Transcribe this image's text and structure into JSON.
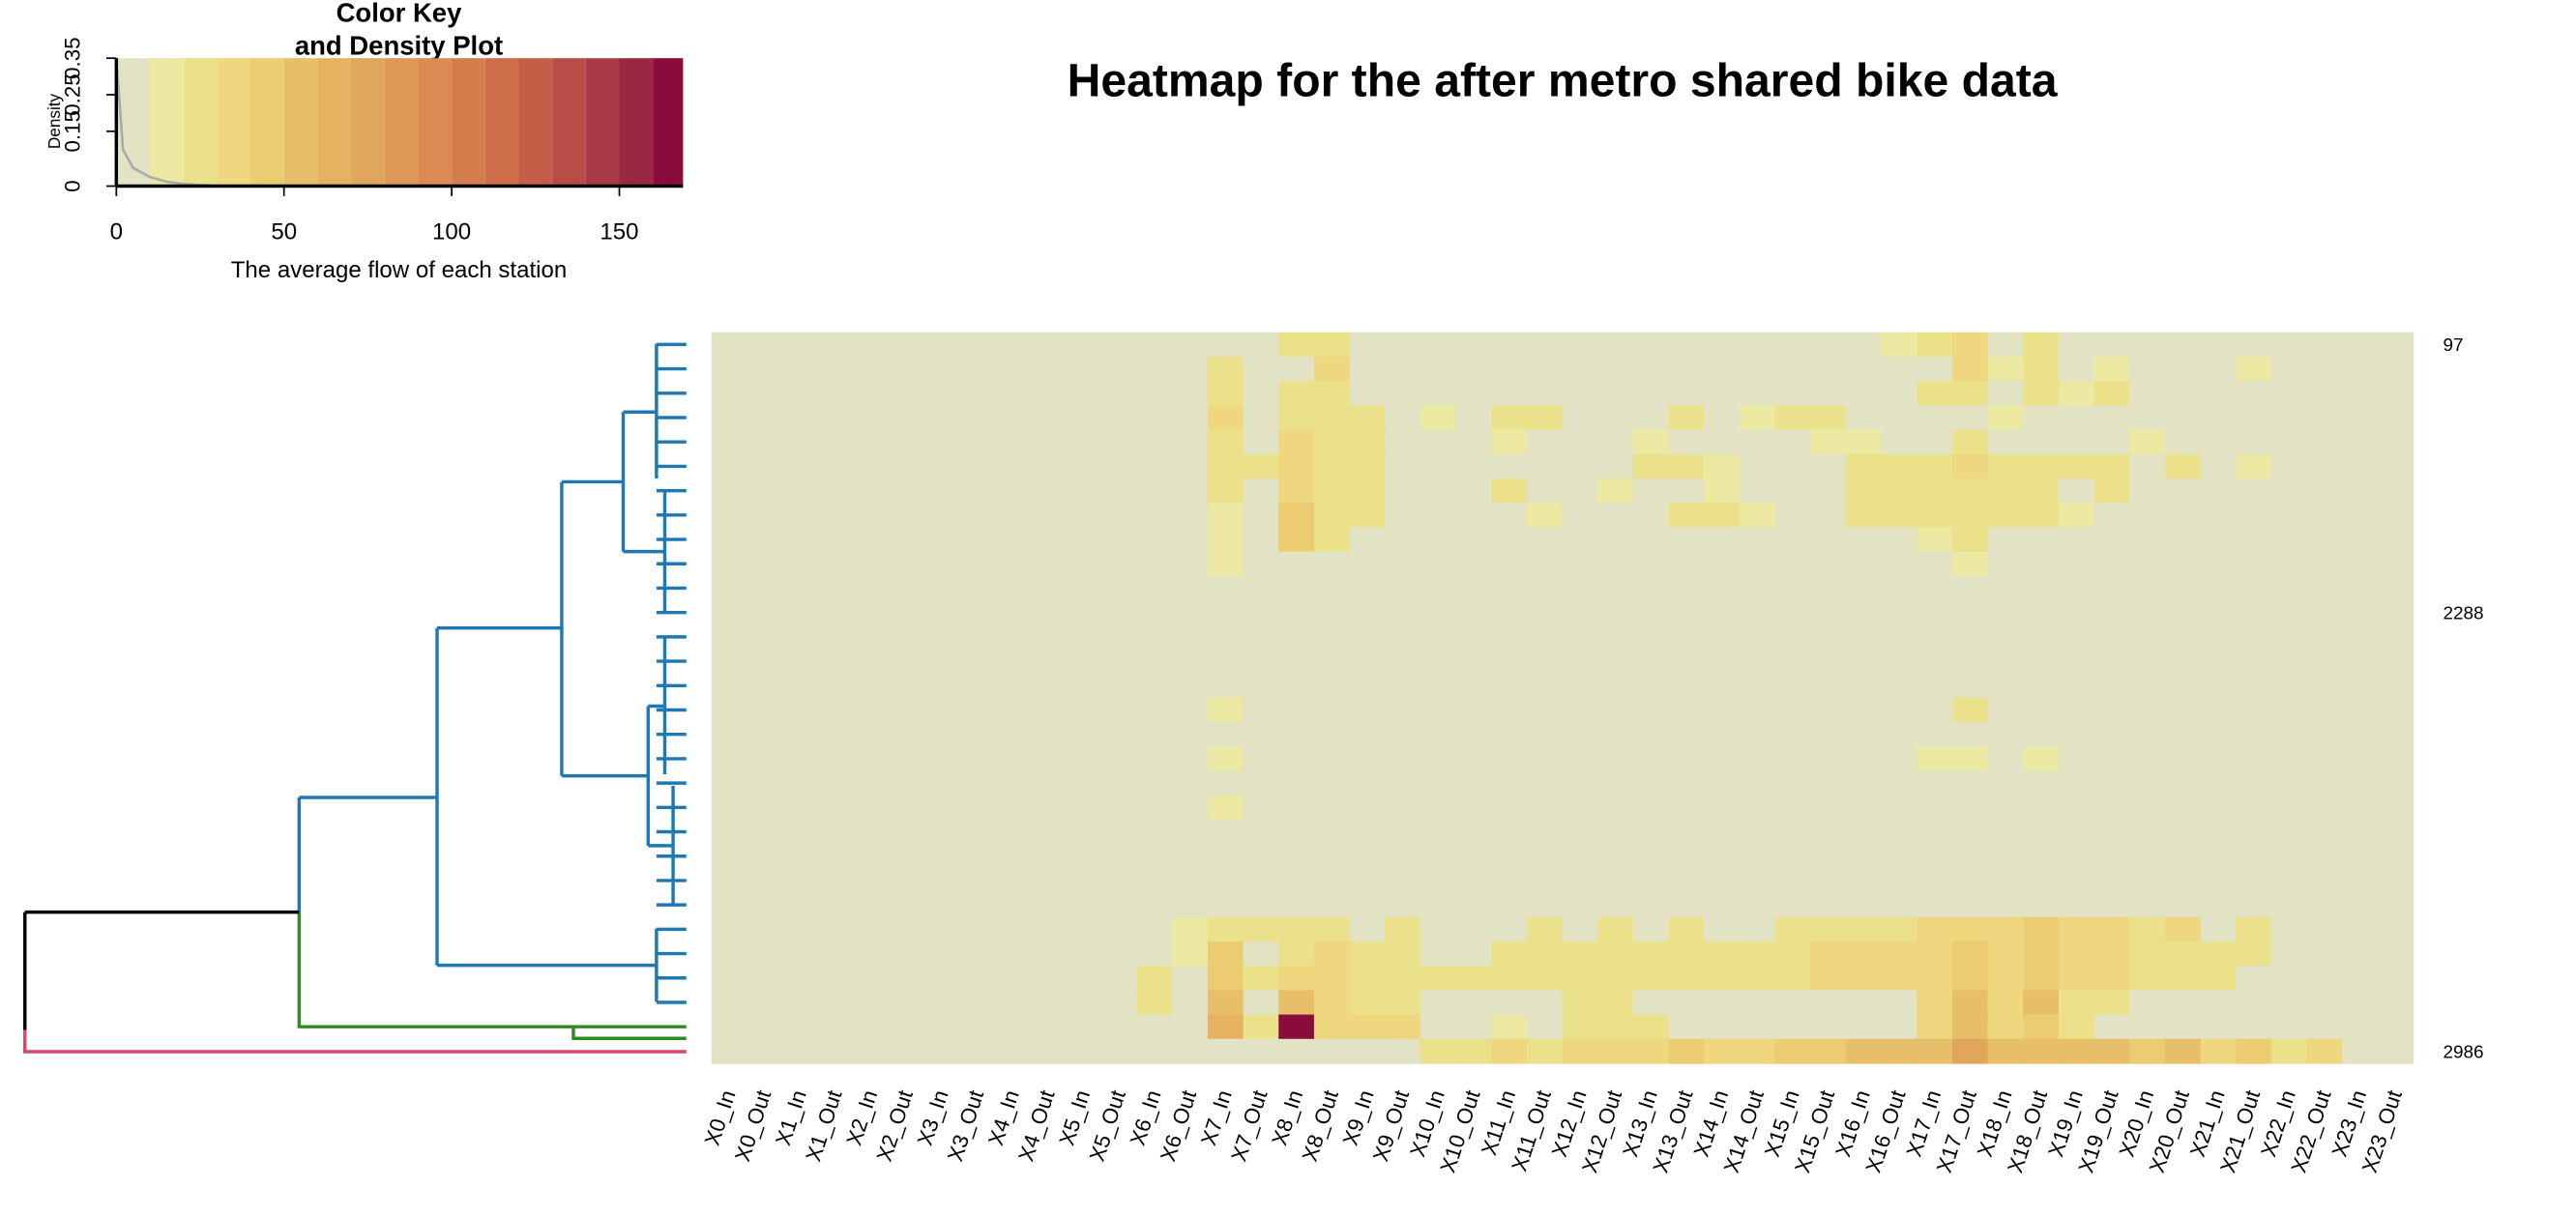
{
  "chart_data": {
    "type": "heatmap",
    "title": "Heatmap for the after metro shared bike data",
    "categories": [
      "X0_In",
      "X0_Out",
      "X1_In",
      "X1_Out",
      "X2_In",
      "X2_Out",
      "X3_In",
      "X3_Out",
      "X4_In",
      "X4_Out",
      "X5_In",
      "X5_Out",
      "X6_In",
      "X6_Out",
      "X7_In",
      "X7_Out",
      "X8_In",
      "X8_Out",
      "X9_In",
      "X9_Out",
      "X10_In",
      "X10_Out",
      "X11_In",
      "X11_Out",
      "X12_In",
      "X12_Out",
      "X13_In",
      "X13_Out",
      "X14_In",
      "X14_Out",
      "X15_In",
      "X15_Out",
      "X16_In",
      "X16_Out",
      "X17_In",
      "X17_Out",
      "X18_In",
      "X18_Out",
      "X19_In",
      "X19_Out",
      "X20_In",
      "X20_Out",
      "X21_In",
      "X21_Out",
      "X22_In",
      "X22_Out",
      "X23_In",
      "X23_Out"
    ],
    "rows": [
      "97",
      null,
      null,
      null,
      null,
      null,
      null,
      null,
      null,
      null,
      null,
      "2288",
      null,
      null,
      null,
      null,
      null,
      null,
      null,
      null,
      null,
      null,
      null,
      null,
      null,
      null,
      null,
      null,
      null,
      "2986"
    ],
    "values": [
      [
        0,
        0,
        0,
        0,
        0,
        0,
        0,
        0,
        0,
        0,
        0,
        0,
        0,
        0,
        0,
        0,
        20,
        25,
        0,
        0,
        0,
        0,
        0,
        0,
        0,
        0,
        0,
        0,
        0,
        0,
        0,
        0,
        0,
        15,
        20,
        30,
        0,
        20,
        0,
        0,
        0,
        0,
        0,
        0,
        0,
        0,
        0,
        0
      ],
      [
        0,
        0,
        0,
        0,
        0,
        0,
        0,
        0,
        0,
        0,
        0,
        0,
        0,
        0,
        20,
        0,
        0,
        30,
        0,
        0,
        0,
        0,
        0,
        0,
        0,
        0,
        0,
        0,
        0,
        0,
        0,
        0,
        0,
        0,
        0,
        30,
        15,
        20,
        0,
        15,
        0,
        0,
        0,
        15,
        0,
        0,
        0,
        0
      ],
      [
        0,
        0,
        0,
        0,
        0,
        0,
        0,
        0,
        0,
        0,
        0,
        0,
        0,
        0,
        25,
        0,
        20,
        25,
        0,
        0,
        0,
        0,
        0,
        0,
        0,
        0,
        0,
        0,
        0,
        0,
        0,
        0,
        0,
        0,
        20,
        25,
        0,
        25,
        15,
        20,
        0,
        0,
        0,
        0,
        0,
        0,
        0,
        0
      ],
      [
        0,
        0,
        0,
        0,
        0,
        0,
        0,
        0,
        0,
        0,
        0,
        0,
        0,
        0,
        30,
        0,
        25,
        20,
        20,
        0,
        15,
        0,
        20,
        20,
        0,
        0,
        0,
        20,
        0,
        15,
        20,
        20,
        0,
        0,
        0,
        0,
        15,
        0,
        0,
        0,
        0,
        0,
        0,
        0,
        0,
        0,
        0,
        0
      ],
      [
        0,
        0,
        0,
        0,
        0,
        0,
        0,
        0,
        0,
        0,
        0,
        0,
        0,
        0,
        25,
        0,
        30,
        20,
        20,
        0,
        0,
        0,
        15,
        0,
        0,
        0,
        15,
        0,
        0,
        0,
        0,
        15,
        15,
        0,
        0,
        20,
        0,
        0,
        0,
        0,
        15,
        0,
        0,
        0,
        0,
        0,
        0,
        0
      ],
      [
        0,
        0,
        0,
        0,
        0,
        0,
        0,
        0,
        0,
        0,
        0,
        0,
        0,
        0,
        25,
        20,
        35,
        25,
        20,
        0,
        0,
        0,
        0,
        0,
        0,
        0,
        20,
        20,
        15,
        0,
        0,
        0,
        25,
        25,
        25,
        30,
        25,
        25,
        20,
        25,
        0,
        20,
        0,
        15,
        0,
        0,
        0,
        0
      ],
      [
        0,
        0,
        0,
        0,
        0,
        0,
        0,
        0,
        0,
        0,
        0,
        0,
        0,
        0,
        20,
        0,
        30,
        25,
        20,
        0,
        0,
        0,
        20,
        0,
        0,
        15,
        0,
        0,
        15,
        0,
        0,
        0,
        25,
        25,
        20,
        25,
        20,
        20,
        0,
        20,
        0,
        0,
        0,
        0,
        0,
        0,
        0,
        0
      ],
      [
        0,
        0,
        0,
        0,
        0,
        0,
        0,
        0,
        0,
        0,
        0,
        0,
        0,
        0,
        15,
        0,
        40,
        20,
        20,
        0,
        0,
        0,
        0,
        15,
        0,
        0,
        0,
        20,
        20,
        15,
        0,
        0,
        20,
        20,
        20,
        20,
        20,
        20,
        15,
        0,
        0,
        0,
        0,
        0,
        0,
        0,
        0,
        0
      ],
      [
        0,
        0,
        0,
        0,
        0,
        0,
        0,
        0,
        0,
        0,
        0,
        0,
        0,
        0,
        15,
        0,
        45,
        20,
        0,
        0,
        0,
        0,
        0,
        0,
        0,
        0,
        0,
        0,
        0,
        0,
        0,
        0,
        0,
        0,
        15,
        20,
        0,
        0,
        0,
        0,
        0,
        0,
        0,
        0,
        0,
        0,
        0,
        0
      ],
      [
        0,
        0,
        0,
        0,
        0,
        0,
        0,
        0,
        0,
        0,
        0,
        0,
        0,
        0,
        15,
        0,
        0,
        0,
        0,
        0,
        0,
        0,
        0,
        0,
        0,
        0,
        0,
        0,
        0,
        0,
        0,
        0,
        0,
        0,
        0,
        15,
        0,
        0,
        0,
        0,
        0,
        0,
        0,
        0,
        0,
        0,
        0,
        0
      ],
      [
        0,
        0,
        0,
        0,
        0,
        0,
        0,
        0,
        0,
        0,
        0,
        0,
        0,
        0,
        0,
        0,
        0,
        0,
        0,
        0,
        0,
        0,
        0,
        0,
        0,
        0,
        0,
        0,
        0,
        0,
        0,
        0,
        0,
        0,
        0,
        0,
        0,
        0,
        0,
        0,
        0,
        0,
        0,
        0,
        0,
        0,
        0,
        0
      ],
      [
        0,
        0,
        0,
        0,
        0,
        0,
        0,
        0,
        0,
        0,
        0,
        0,
        0,
        0,
        0,
        0,
        0,
        0,
        0,
        0,
        0,
        0,
        0,
        0,
        0,
        0,
        0,
        0,
        0,
        0,
        0,
        0,
        0,
        0,
        0,
        0,
        0,
        0,
        0,
        0,
        0,
        0,
        0,
        0,
        0,
        0,
        0,
        0
      ],
      [
        0,
        0,
        0,
        0,
        0,
        0,
        0,
        0,
        0,
        0,
        0,
        0,
        0,
        0,
        0,
        0,
        0,
        0,
        0,
        0,
        0,
        0,
        0,
        0,
        0,
        0,
        0,
        0,
        0,
        0,
        0,
        0,
        0,
        0,
        0,
        0,
        0,
        0,
        0,
        0,
        0,
        0,
        0,
        0,
        0,
        0,
        0,
        0
      ],
      [
        0,
        0,
        0,
        0,
        0,
        0,
        0,
        0,
        0,
        0,
        0,
        0,
        0,
        0,
        0,
        0,
        0,
        0,
        0,
        0,
        0,
        0,
        0,
        0,
        0,
        0,
        0,
        0,
        0,
        0,
        0,
        0,
        0,
        0,
        0,
        0,
        0,
        0,
        0,
        0,
        0,
        0,
        0,
        0,
        0,
        0,
        0,
        0
      ],
      [
        0,
        0,
        0,
        0,
        0,
        0,
        0,
        0,
        0,
        0,
        0,
        0,
        0,
        0,
        0,
        0,
        0,
        0,
        0,
        0,
        0,
        0,
        0,
        0,
        0,
        0,
        0,
        0,
        0,
        0,
        0,
        0,
        0,
        0,
        0,
        0,
        0,
        0,
        0,
        0,
        0,
        0,
        0,
        0,
        0,
        0,
        0,
        0
      ],
      [
        0,
        0,
        0,
        0,
        0,
        0,
        0,
        0,
        0,
        0,
        0,
        0,
        0,
        0,
        15,
        0,
        0,
        0,
        0,
        0,
        0,
        0,
        0,
        0,
        0,
        0,
        0,
        0,
        0,
        0,
        0,
        0,
        0,
        0,
        0,
        20,
        0,
        0,
        0,
        0,
        0,
        0,
        0,
        0,
        0,
        0,
        0,
        0
      ],
      [
        0,
        0,
        0,
        0,
        0,
        0,
        0,
        0,
        0,
        0,
        0,
        0,
        0,
        0,
        0,
        0,
        0,
        0,
        0,
        0,
        0,
        0,
        0,
        0,
        0,
        0,
        0,
        0,
        0,
        0,
        0,
        0,
        0,
        0,
        0,
        0,
        0,
        0,
        0,
        0,
        0,
        0,
        0,
        0,
        0,
        0,
        0,
        0
      ],
      [
        0,
        0,
        0,
        0,
        0,
        0,
        0,
        0,
        0,
        0,
        0,
        0,
        0,
        0,
        15,
        0,
        0,
        0,
        0,
        0,
        0,
        0,
        0,
        0,
        0,
        0,
        0,
        0,
        0,
        0,
        0,
        0,
        0,
        0,
        15,
        15,
        0,
        15,
        0,
        0,
        0,
        0,
        0,
        0,
        0,
        0,
        0,
        0
      ],
      [
        0,
        0,
        0,
        0,
        0,
        0,
        0,
        0,
        0,
        0,
        0,
        0,
        0,
        0,
        0,
        0,
        0,
        0,
        0,
        0,
        0,
        0,
        0,
        0,
        0,
        0,
        0,
        0,
        0,
        0,
        0,
        0,
        0,
        0,
        0,
        0,
        0,
        0,
        0,
        0,
        0,
        0,
        0,
        0,
        0,
        0,
        0,
        0
      ],
      [
        0,
        0,
        0,
        0,
        0,
        0,
        0,
        0,
        0,
        0,
        0,
        0,
        0,
        0,
        15,
        0,
        0,
        0,
        0,
        0,
        0,
        0,
        0,
        0,
        0,
        0,
        0,
        0,
        0,
        0,
        0,
        0,
        0,
        0,
        0,
        0,
        0,
        0,
        0,
        0,
        0,
        0,
        0,
        0,
        0,
        0,
        0,
        0
      ],
      [
        0,
        0,
        0,
        0,
        0,
        0,
        0,
        0,
        0,
        0,
        0,
        0,
        0,
        0,
        0,
        0,
        0,
        0,
        0,
        0,
        0,
        0,
        0,
        0,
        0,
        0,
        0,
        0,
        0,
        0,
        0,
        0,
        0,
        0,
        0,
        0,
        0,
        0,
        0,
        0,
        0,
        0,
        0,
        0,
        0,
        0,
        0,
        0
      ],
      [
        0,
        0,
        0,
        0,
        0,
        0,
        0,
        0,
        0,
        0,
        0,
        0,
        0,
        0,
        0,
        0,
        0,
        0,
        0,
        0,
        0,
        0,
        0,
        0,
        0,
        0,
        0,
        0,
        0,
        0,
        0,
        0,
        0,
        0,
        0,
        0,
        0,
        0,
        0,
        0,
        0,
        0,
        0,
        0,
        0,
        0,
        0,
        0
      ],
      [
        0,
        0,
        0,
        0,
        0,
        0,
        0,
        0,
        0,
        0,
        0,
        0,
        0,
        0,
        0,
        0,
        0,
        0,
        0,
        0,
        0,
        0,
        0,
        0,
        0,
        0,
        0,
        0,
        0,
        0,
        0,
        0,
        0,
        0,
        0,
        0,
        0,
        0,
        0,
        0,
        0,
        0,
        0,
        0,
        0,
        0,
        0,
        0
      ],
      [
        0,
        0,
        0,
        0,
        0,
        0,
        0,
        0,
        0,
        0,
        0,
        0,
        0,
        0,
        0,
        0,
        0,
        0,
        0,
        0,
        0,
        0,
        0,
        0,
        0,
        0,
        0,
        0,
        0,
        0,
        0,
        0,
        0,
        0,
        0,
        0,
        0,
        0,
        0,
        0,
        0,
        0,
        0,
        0,
        0,
        0,
        0,
        0
      ],
      [
        0,
        0,
        0,
        0,
        0,
        0,
        0,
        0,
        0,
        0,
        0,
        0,
        0,
        15,
        20,
        25,
        20,
        25,
        0,
        20,
        0,
        0,
        0,
        20,
        0,
        20,
        0,
        20,
        0,
        0,
        25,
        25,
        25,
        25,
        30,
        35,
        30,
        40,
        30,
        30,
        25,
        30,
        0,
        25,
        0,
        0,
        0,
        0
      ],
      [
        0,
        0,
        0,
        0,
        0,
        0,
        0,
        0,
        0,
        0,
        0,
        0,
        0,
        15,
        40,
        0,
        25,
        30,
        20,
        20,
        0,
        0,
        25,
        20,
        20,
        20,
        20,
        20,
        25,
        20,
        25,
        30,
        30,
        30,
        35,
        40,
        35,
        45,
        35,
        30,
        25,
        25,
        20,
        20,
        0,
        0,
        0,
        0
      ],
      [
        0,
        0,
        0,
        0,
        0,
        0,
        0,
        0,
        0,
        0,
        0,
        0,
        20,
        0,
        45,
        20,
        35,
        30,
        25,
        25,
        20,
        20,
        25,
        25,
        25,
        25,
        25,
        25,
        25,
        25,
        25,
        30,
        30,
        30,
        35,
        45,
        35,
        45,
        30,
        30,
        25,
        25,
        20,
        0,
        0,
        0,
        0,
        0
      ],
      [
        0,
        0,
        0,
        0,
        0,
        0,
        0,
        0,
        0,
        0,
        0,
        0,
        25,
        0,
        55,
        0,
        50,
        35,
        25,
        20,
        0,
        0,
        0,
        0,
        20,
        20,
        0,
        0,
        0,
        0,
        0,
        0,
        0,
        0,
        30,
        50,
        35,
        50,
        25,
        25,
        0,
        0,
        0,
        0,
        0,
        0,
        0,
        0
      ],
      [
        0,
        0,
        0,
        0,
        0,
        0,
        0,
        0,
        0,
        0,
        0,
        0,
        0,
        0,
        60,
        25,
        165,
        30,
        30,
        30,
        0,
        0,
        15,
        0,
        20,
        20,
        20,
        0,
        0,
        0,
        0,
        0,
        0,
        0,
        30,
        55,
        30,
        45,
        25,
        0,
        0,
        0,
        0,
        0,
        0,
        0,
        0,
        0
      ],
      [
        0,
        0,
        0,
        0,
        0,
        0,
        0,
        0,
        0,
        0,
        0,
        0,
        0,
        0,
        0,
        0,
        0,
        0,
        0,
        0,
        20,
        20,
        35,
        25,
        30,
        30,
        30,
        40,
        30,
        35,
        45,
        40,
        50,
        55,
        55,
        75,
        55,
        55,
        55,
        55,
        45,
        50,
        35,
        40,
        20,
        30,
        0,
        0
      ]
    ],
    "color_key": {
      "title_lines": [
        "Color Key",
        "and Density Plot"
      ],
      "xlabel": "The average flow of each station",
      "ylabel": "Density",
      "xlim": [
        0,
        169
      ],
      "xticks": [
        0,
        50,
        100,
        150
      ],
      "ylim": [
        0,
        0.35
      ],
      "yticks": [
        0,
        0.15,
        0.25,
        0.35
      ],
      "breaks": [
        0,
        10,
        20,
        30,
        40,
        50,
        60,
        70,
        80,
        90,
        100,
        110,
        120,
        130,
        140,
        150,
        160,
        170
      ],
      "colors": [
        "#e1e3c4",
        "#ebe9a2",
        "#ece18b",
        "#eed77e",
        "#ebcc71",
        "#e8bf69",
        "#e5b262",
        "#e2a55c",
        "#df9858",
        "#da8a52",
        "#d57c4d",
        "#cd6d49",
        "#c45e47",
        "#b84c46",
        "#aa3b45",
        "#9a2843",
        "#8a0c3d"
      ],
      "density_x": [
        0,
        2,
        5,
        10,
        15,
        20,
        25,
        30
      ],
      "density_y": [
        0.35,
        0.1,
        0.05,
        0.025,
        0.012,
        0.006,
        0.003,
        0.001
      ]
    }
  }
}
